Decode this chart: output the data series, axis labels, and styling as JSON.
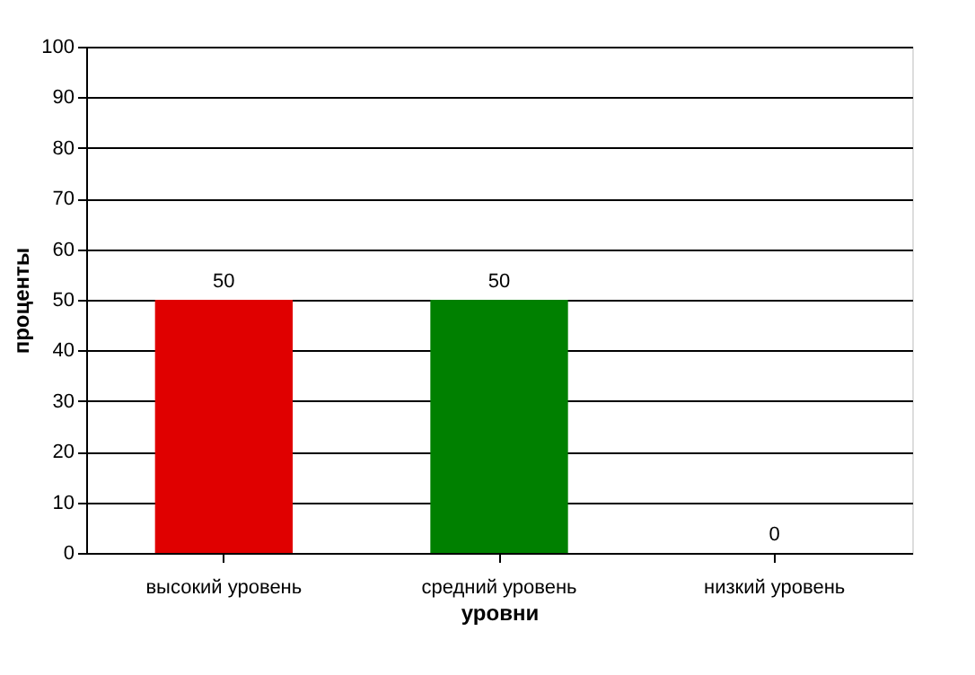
{
  "chart_data": {
    "type": "bar",
    "categories": [
      "высокий уровень",
      "средний уровень",
      "низкий уровень"
    ],
    "values": [
      50,
      50,
      0
    ],
    "colors": [
      "#e00000",
      "#008000",
      "#0000c0"
    ],
    "xlabel": "уровни",
    "ylabel": "проценты",
    "ylim": [
      0,
      100
    ],
    "yticks": [
      0,
      10,
      20,
      30,
      40,
      50,
      60,
      70,
      80,
      90,
      100
    ],
    "grid": "y",
    "data_labels": true
  }
}
